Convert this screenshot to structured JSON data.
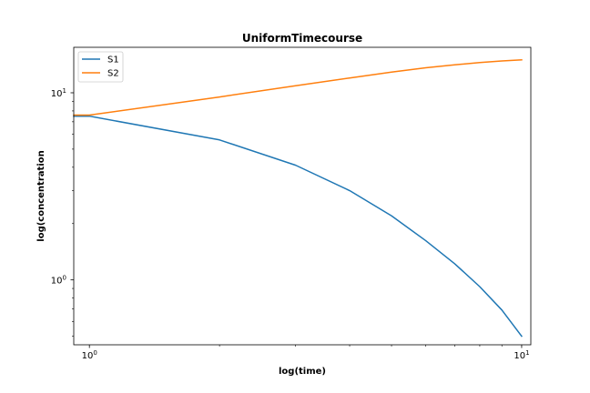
{
  "chart_data": {
    "type": "line",
    "title": "UniformTimecourse",
    "xlabel": "log(time)",
    "ylabel": "log(concentration",
    "xscale": "log",
    "yscale": "log",
    "xlim": [
      0.92,
      10.5
    ],
    "ylim": [
      0.45,
      17.5
    ],
    "x_ticks": [
      {
        "value": 1,
        "base": "10",
        "exp": "0"
      },
      {
        "value": 10,
        "base": "10",
        "exp": "1"
      }
    ],
    "y_ticks": [
      {
        "value": 1,
        "base": "10",
        "exp": "0"
      },
      {
        "value": 10,
        "base": "10",
        "exp": "1"
      }
    ],
    "x_minor_ticks": [
      2,
      3,
      4,
      5,
      6,
      7,
      8,
      9
    ],
    "y_minor_ticks": [
      0.5,
      0.6,
      0.7,
      0.8,
      0.9,
      2,
      3,
      4,
      5,
      6,
      7,
      8,
      9
    ],
    "grid": false,
    "legend_position": "top-left",
    "x": [
      0.92,
      1,
      2,
      3,
      4,
      5,
      6,
      7,
      8,
      9,
      10
    ],
    "series": [
      {
        "name": "S1",
        "color": "#1f77b4",
        "values": [
          7.5,
          7.5,
          5.6,
          4.1,
          3.0,
          2.2,
          1.62,
          1.22,
          0.92,
          0.69,
          0.5
        ]
      },
      {
        "name": "S2",
        "color": "#ff7f0e",
        "values": [
          7.6,
          7.6,
          9.5,
          10.9,
          12.0,
          12.9,
          13.6,
          14.1,
          14.5,
          14.8,
          15.0
        ]
      }
    ]
  }
}
